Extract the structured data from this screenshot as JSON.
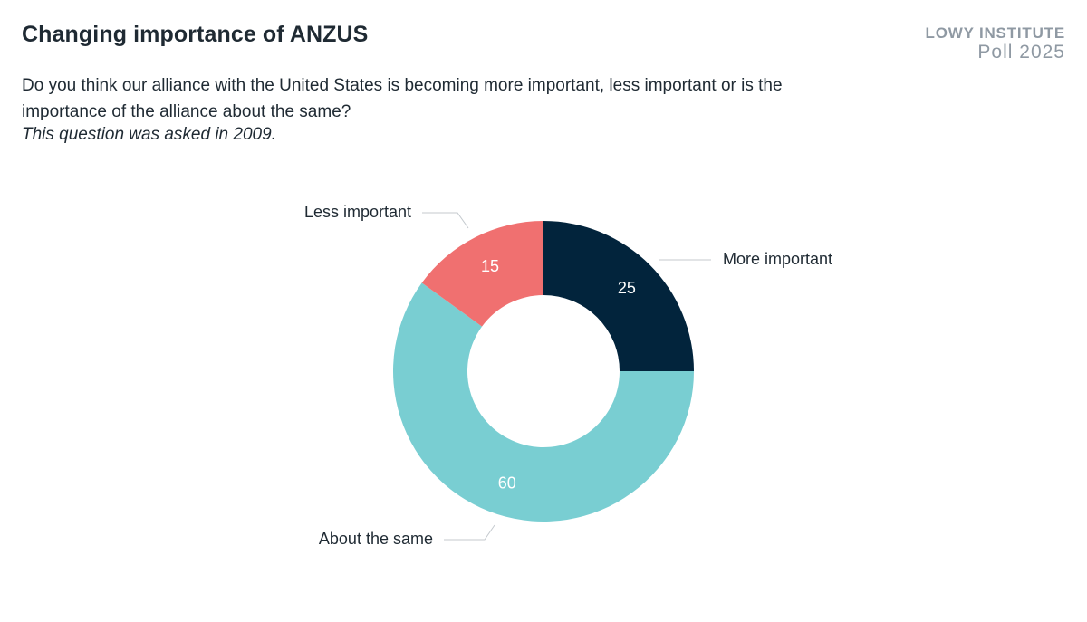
{
  "header": {
    "title": "Changing importance of ANZUS",
    "question": "Do you think our alliance with the United States is becoming more important, less important or is the importance of the alliance about the same?",
    "note": "This question was asked in 2009."
  },
  "brand": {
    "line1": "LOWY INSTITUTE",
    "line2": "Poll 2025"
  },
  "chart_data": {
    "type": "pie",
    "variant": "donut",
    "title": "Changing importance of ANZUS",
    "slices": [
      {
        "label": "More important",
        "value": 25,
        "color": "#02243c"
      },
      {
        "label": "About the same",
        "value": 60,
        "color": "#79ced2"
      },
      {
        "label": "Less important",
        "value": 15,
        "color": "#f07070"
      }
    ],
    "start": "12 o'clock",
    "direction": "clockwise",
    "data_labels": true
  }
}
